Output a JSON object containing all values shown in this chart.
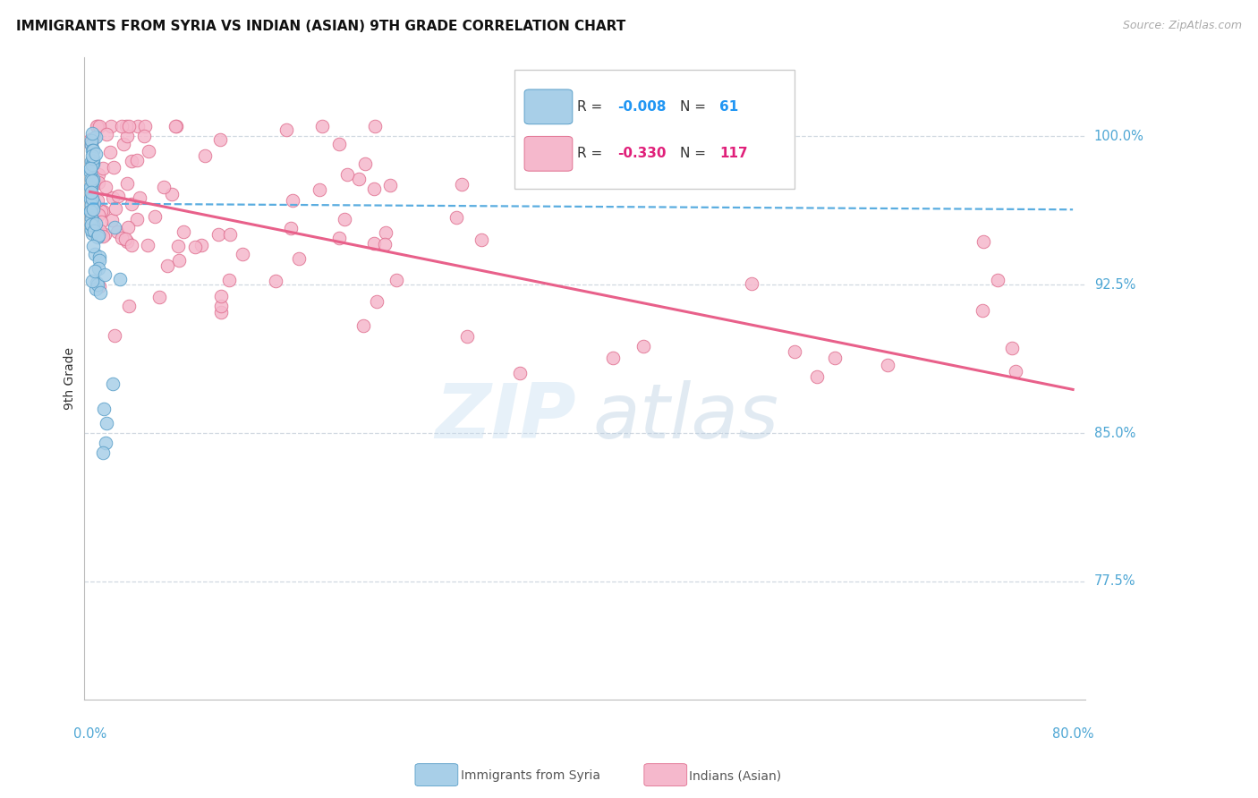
{
  "title": "IMMIGRANTS FROM SYRIA VS INDIAN (ASIAN) 9TH GRADE CORRELATION CHART",
  "source": "Source: ZipAtlas.com",
  "ylabel": "9th Grade",
  "color_blue": "#a8cfe8",
  "color_blue_edge": "#5a9fc8",
  "color_blue_line": "#5aade0",
  "color_pink": "#f5b8cc",
  "color_pink_edge": "#e07090",
  "color_pink_line": "#e8608a",
  "color_ytick": "#4da6d4",
  "color_grid": "#d0d8e0",
  "n_syria": 61,
  "n_indian": 117,
  "x_min": -0.005,
  "x_max": 0.805,
  "y_min": 0.715,
  "y_max": 1.04,
  "y_ticks": [
    0.775,
    0.85,
    0.925,
    1.0
  ],
  "y_tick_labels": [
    "77.5%",
    "85.0%",
    "92.5%",
    "100.0%"
  ],
  "legend_label1": "Immigrants from Syria",
  "legend_label2": "Indians (Asian)",
  "syria_line_x": [
    0.0,
    0.795
  ],
  "syria_line_y": [
    0.966,
    0.963
  ],
  "indian_line_x": [
    0.0,
    0.795
  ],
  "indian_line_y": [
    0.972,
    0.872
  ]
}
